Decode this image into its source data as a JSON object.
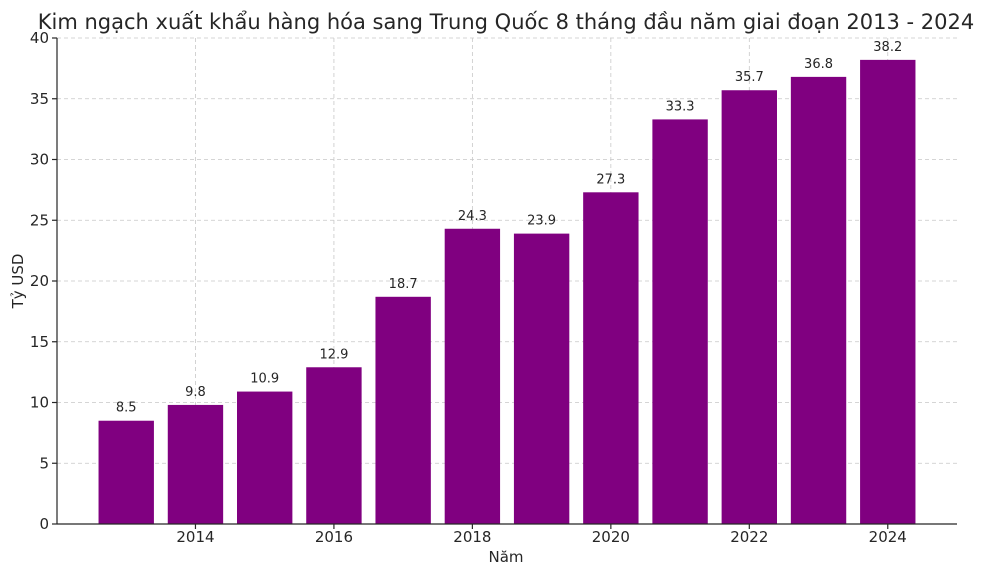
{
  "chart_data": {
    "type": "bar",
    "title": "Kim ngạch xuất khẩu hàng hóa sang Trung Quốc 8 tháng đầu năm giai đoạn 2013 - 2024",
    "xlabel": "Năm",
    "ylabel": "Tỷ USD",
    "categories": [
      2013,
      2014,
      2015,
      2016,
      2017,
      2018,
      2019,
      2020,
      2021,
      2022,
      2023,
      2024
    ],
    "values": [
      8.5,
      9.8,
      10.9,
      12.9,
      18.7,
      24.3,
      23.9,
      27.3,
      33.3,
      35.7,
      36.8,
      38.2
    ],
    "value_labels": [
      "8.5",
      "9.8",
      "10.9",
      "12.9",
      "18.7",
      "24.3",
      "23.9",
      "27.3",
      "33.3",
      "35.7",
      "36.8",
      "38.2"
    ],
    "x_ticks": [
      "2014",
      "2016",
      "2018",
      "2020",
      "2022",
      "2024"
    ],
    "y_ticks": [
      "0",
      "5",
      "10",
      "15",
      "20",
      "25",
      "30",
      "35",
      "40"
    ],
    "ylim": [
      0,
      40
    ],
    "xlim": [
      2012,
      2025
    ],
    "grid": true,
    "bar_color": "#800080"
  }
}
